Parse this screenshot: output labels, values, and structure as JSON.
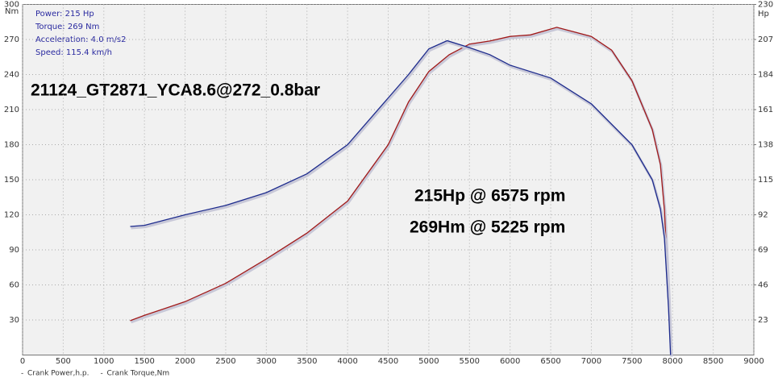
{
  "chart_data": {
    "type": "line",
    "info": [
      "Power: 215 Hp",
      "Torque: 269 Nm",
      "Acceleration: 4.0 m/s2",
      "Speed: 115.4 km/h"
    ],
    "ylabel": "Nm",
    "y2label": "Hp",
    "annotations": [
      "21124_GT2871_YCA8.6@272_0.8bar",
      "215Hp @ 6575 rpm",
      "269Hm @ 5225 rpm"
    ],
    "xlim": [
      0,
      9000
    ],
    "xticks": [
      0,
      500,
      1000,
      1500,
      2000,
      2500,
      3000,
      3500,
      4000,
      4500,
      5000,
      5500,
      6000,
      6500,
      7000,
      7500,
      8000,
      8500,
      9000
    ],
    "ylim": [
      0,
      300
    ],
    "yticks": [
      30,
      60,
      90,
      120,
      150,
      180,
      210,
      240,
      270,
      300
    ],
    "y2lim": [
      0,
      230
    ],
    "y2ticks": [
      23,
      46,
      69,
      92,
      115,
      138,
      161,
      184,
      207,
      230
    ],
    "grid": true,
    "series": [
      {
        "name": "Crank Power,h.p.",
        "color": "#a01818",
        "axis": "y2",
        "x": [
          1325,
          1500,
          2000,
          2500,
          3000,
          3500,
          4000,
          4500,
          4750,
          5000,
          5250,
          5500,
          5750,
          6000,
          6250,
          6575,
          7000,
          7250,
          7500,
          7750,
          7850,
          7900,
          7950,
          7980
        ],
        "values": [
          22.5,
          26,
          35,
          47,
          63,
          80,
          101,
          138,
          166,
          186,
          197,
          204,
          206,
          209,
          210,
          215,
          209,
          200,
          180,
          148,
          125,
          95,
          40,
          0
        ]
      },
      {
        "name": "Crank Torque,Nm",
        "color": "#1c2a8c",
        "axis": "y",
        "x": [
          1325,
          1500,
          2000,
          2500,
          3000,
          3500,
          4000,
          4500,
          4750,
          5000,
          5225,
          5500,
          5750,
          6000,
          6500,
          7000,
          7500,
          7750,
          7850,
          7900,
          7950,
          7975
        ],
        "values": [
          110,
          111,
          120,
          128,
          139,
          155,
          180,
          220,
          240,
          262,
          269,
          263,
          257,
          248,
          237,
          215,
          180,
          150,
          125,
          100,
          40,
          0
        ]
      }
    ]
  }
}
